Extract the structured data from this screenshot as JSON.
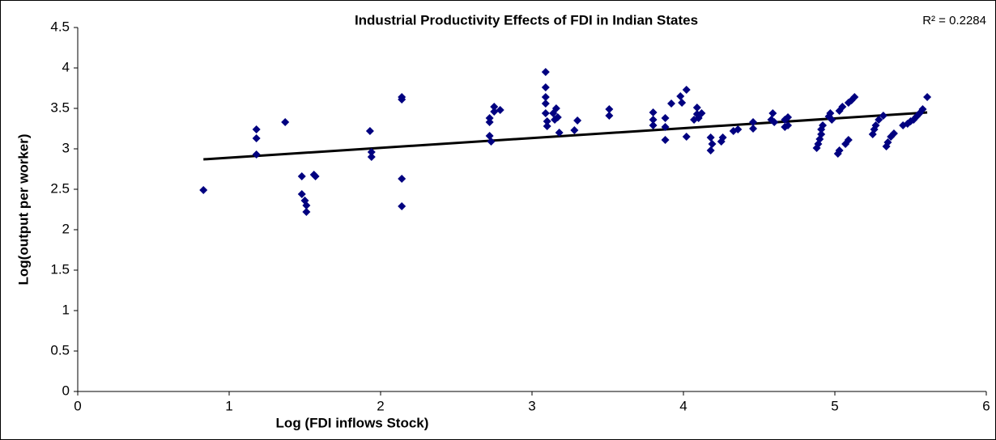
{
  "chart_data": {
    "type": "scatter",
    "title": "Industrial Productivity Effects of FDI in Indian States",
    "annotation": "R² = 0.2284",
    "x_label": "Log (FDI inflows Stock)",
    "y_label": "Log(output per worker)",
    "color": "#000080",
    "trendline_color": "#000000",
    "xlim": [
      0,
      6
    ],
    "xticks": [
      0,
      1,
      2,
      3,
      4,
      5,
      6
    ],
    "ylim": [
      0,
      4.5
    ],
    "yticks": [
      0,
      0.5,
      1,
      1.5,
      2,
      2.5,
      3,
      3.5,
      4,
      4.5
    ],
    "grid": false,
    "x": [
      0.83,
      1.18,
      1.18,
      1.18,
      1.37,
      1.48,
      1.48,
      1.5,
      1.51,
      1.51,
      1.56,
      1.57,
      1.93,
      1.94,
      1.94,
      2.14,
      2.14,
      2.14,
      2.14,
      2.72,
      2.72,
      2.72,
      2.73,
      2.75,
      2.75,
      2.79,
      3.09,
      3.09,
      3.09,
      3.09,
      3.09,
      3.1,
      3.1,
      3.14,
      3.15,
      3.16,
      3.17,
      3.18,
      3.28,
      3.3,
      3.51,
      3.51,
      3.8,
      3.8,
      3.8,
      3.88,
      3.88,
      3.88,
      3.92,
      3.98,
      3.99,
      4.02,
      4.02,
      4.07,
      4.09,
      4.09,
      4.1,
      4.12,
      4.18,
      4.18,
      4.19,
      4.25,
      4.26,
      4.33,
      4.36,
      4.46,
      4.46,
      4.58,
      4.59,
      4.6,
      4.67,
      4.67,
      4.69,
      4.69,
      4.88,
      4.89,
      4.9,
      4.91,
      4.91,
      4.92,
      4.96,
      4.97,
      4.98,
      5.02,
      5.03,
      5.03,
      5.05,
      5.07,
      5.09,
      5.09,
      5.11,
      5.13,
      5.25,
      5.26,
      5.27,
      5.29,
      5.32,
      5.34,
      5.35,
      5.37,
      5.39,
      5.45,
      5.48,
      5.5,
      5.52,
      5.54,
      5.56,
      5.58,
      5.61
    ],
    "values": [
      2.49,
      3.24,
      3.13,
      2.93,
      3.33,
      2.66,
      2.44,
      2.36,
      2.3,
      2.22,
      2.68,
      2.66,
      3.22,
      2.96,
      2.9,
      3.64,
      3.61,
      2.63,
      2.29,
      3.33,
      3.38,
      3.16,
      3.09,
      3.52,
      3.46,
      3.48,
      3.95,
      3.76,
      3.64,
      3.56,
      3.44,
      3.34,
      3.28,
      3.44,
      3.36,
      3.5,
      3.39,
      3.2,
      3.23,
      3.35,
      3.49,
      3.41,
      3.45,
      3.36,
      3.29,
      3.38,
      3.27,
      3.11,
      3.56,
      3.65,
      3.57,
      3.73,
      3.15,
      3.36,
      3.43,
      3.51,
      3.38,
      3.44,
      3.14,
      2.98,
      3.06,
      3.09,
      3.14,
      3.22,
      3.24,
      3.33,
      3.25,
      3.36,
      3.44,
      3.33,
      3.36,
      3.27,
      3.29,
      3.39,
      3.01,
      3.06,
      3.12,
      3.18,
      3.24,
      3.29,
      3.4,
      3.44,
      3.36,
      2.94,
      2.98,
      3.47,
      3.52,
      3.06,
      3.11,
      3.57,
      3.6,
      3.64,
      3.18,
      3.24,
      3.29,
      3.36,
      3.41,
      3.03,
      3.08,
      3.15,
      3.19,
      3.29,
      3.31,
      3.34,
      3.36,
      3.4,
      3.44,
      3.49,
      3.64
    ],
    "trendline": {
      "x": [
        0.83,
        5.61
      ],
      "y": [
        2.87,
        3.45
      ]
    }
  }
}
